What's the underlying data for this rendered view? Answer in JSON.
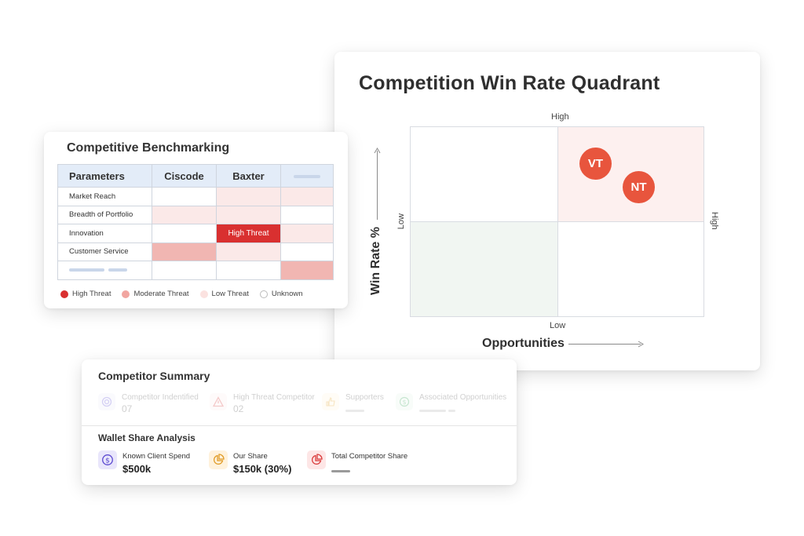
{
  "quadrant": {
    "title": "Competition Win Rate Quadrant",
    "y_axis_label": "Win Rate %",
    "x_axis_label": "Opportunities",
    "tick_high_top": "High",
    "tick_low_bottom": "Low",
    "tick_low_left": "Low",
    "tick_high_right": "High",
    "bubbles": [
      {
        "label": "VT"
      },
      {
        "label": "NT"
      }
    ],
    "colors": {
      "bubble": "#e8553d",
      "high_quadrant": "#fdf0ef",
      "low_quadrant": "#f1f6f2"
    }
  },
  "benchmark": {
    "title": "Competitive Benchmarking",
    "headers": [
      "Parameters",
      "Ciscode",
      "Baxter"
    ],
    "rows": [
      {
        "name": "Market Reach",
        "cells": [
          "none",
          "low",
          "low"
        ]
      },
      {
        "name": "Breadth of Portfolio",
        "cells": [
          "low",
          "low",
          "none"
        ]
      },
      {
        "name": "Innovation",
        "cells": [
          "none",
          "high",
          "low"
        ]
      },
      {
        "name": "Customer Service",
        "cells": [
          "mod",
          "low",
          "none"
        ]
      },
      {
        "name": "",
        "cells": [
          "none",
          "none",
          "mod"
        ]
      }
    ],
    "high_threat_cell_label": "High Threat",
    "legend": {
      "high": "High Threat",
      "moderate": "Moderate Threat",
      "low": "Low Threat",
      "unknown": "Unknown"
    },
    "colors": {
      "high": "#d93030",
      "moderate": "#f1b6b2",
      "low": "#fbe9e8",
      "header": "#e3ecf8"
    }
  },
  "summary": {
    "title": "Competitor Summary",
    "metrics": [
      {
        "label": "Competitor Indentified",
        "value": "07",
        "icon": "target-icon"
      },
      {
        "label": "High Threat Competitor",
        "value": "02",
        "icon": "warning-icon"
      },
      {
        "label": "Supporters",
        "value": "",
        "icon": "thumbs-up-icon"
      },
      {
        "label": "Associated Opportunities",
        "value": "",
        "icon": "dollar-icon"
      }
    ],
    "wallet_title": "Wallet Share Analysis",
    "wallet": [
      {
        "label": "Known Client Spend",
        "value": "$500k",
        "icon": "dollar-icon"
      },
      {
        "label": "Our Share",
        "value": "$150k (30%)",
        "icon": "pie-chart-icon"
      },
      {
        "label": "Total Competitor Share",
        "value": "",
        "icon": "pie-chart-icon"
      }
    ]
  }
}
